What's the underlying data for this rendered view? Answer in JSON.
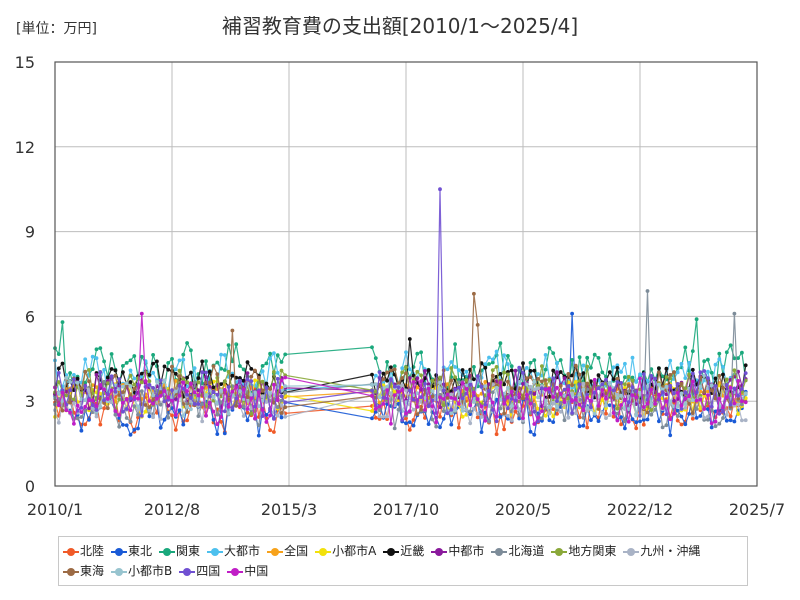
{
  "header": {
    "title": "補習教育費の支出額[2010/1～2025/4]",
    "unit": "[単位：万円]"
  },
  "chart_data": {
    "type": "line",
    "title": "補習教育費の支出額[2010/1～2025/4]",
    "ylabel": "万円",
    "ylim": [
      0,
      15
    ],
    "yticks": [
      "0",
      "3",
      "6",
      "9",
      "12",
      "15"
    ],
    "xticks": [
      "2010/1",
      "2012/8",
      "2015/3",
      "2017/10",
      "2020/5",
      "2022/12",
      "2025/7"
    ],
    "grid": true,
    "legend_position": "bottom",
    "gap": {
      "from": "2015/2",
      "to": "2017/1"
    },
    "series": [
      {
        "name": "北陸",
        "color": "#f05a28",
        "base": 2.7,
        "amp": 0.6
      },
      {
        "name": "東北",
        "color": "#1a5ad6",
        "base": 2.6,
        "amp": 0.6,
        "spikes": [
          {
            "date": "2021/6",
            "value": 6.1
          }
        ]
      },
      {
        "name": "関東",
        "color": "#1aa87c",
        "base": 4.1,
        "amp": 0.7,
        "spikes": [
          {
            "date": "2010/3",
            "value": 5.8
          },
          {
            "date": "2024/3",
            "value": 5.9
          }
        ]
      },
      {
        "name": "大都市",
        "color": "#4dc0ee",
        "base": 3.9,
        "amp": 0.6
      },
      {
        "name": "全国",
        "color": "#f7a21b",
        "base": 3.3,
        "amp": 0.3
      },
      {
        "name": "小都市A",
        "color": "#f2e10c",
        "base": 3.1,
        "amp": 0.5
      },
      {
        "name": "近畿",
        "color": "#111111",
        "base": 3.7,
        "amp": 0.5,
        "spikes": [
          {
            "date": "2017/11",
            "value": 5.2
          }
        ]
      },
      {
        "name": "中都市",
        "color": "#8a1a9c",
        "base": 3.4,
        "amp": 0.5
      },
      {
        "name": "北海道",
        "color": "#7d8c99",
        "base": 2.9,
        "amp": 0.6,
        "spikes": [
          {
            "date": "2023/2",
            "value": 6.9
          },
          {
            "date": "2025/1",
            "value": 6.1
          }
        ]
      },
      {
        "name": "地方関東",
        "color": "#8aa83a",
        "base": 3.4,
        "amp": 0.6
      },
      {
        "name": "九州・沖縄",
        "color": "#a9b3c6",
        "base": 2.9,
        "amp": 0.5
      },
      {
        "name": "東海",
        "color": "#9c6b45",
        "base": 3.4,
        "amp": 0.6,
        "spikes": [
          {
            "date": "2013/12",
            "value": 5.5
          },
          {
            "date": "2019/4",
            "value": 6.8
          },
          {
            "date": "2019/5",
            "value": 5.7
          }
        ]
      },
      {
        "name": "小都市B",
        "color": "#98c4cf",
        "base": 3.2,
        "amp": 0.5
      },
      {
        "name": "四国",
        "color": "#7050d2",
        "base": 3.2,
        "amp": 0.7,
        "spikes": [
          {
            "date": "2018/7",
            "value": 10.5
          }
        ]
      },
      {
        "name": "中国",
        "color": "#c01ec6",
        "base": 3.0,
        "amp": 0.6,
        "spikes": [
          {
            "date": "2011/12",
            "value": 6.1
          }
        ]
      }
    ]
  }
}
